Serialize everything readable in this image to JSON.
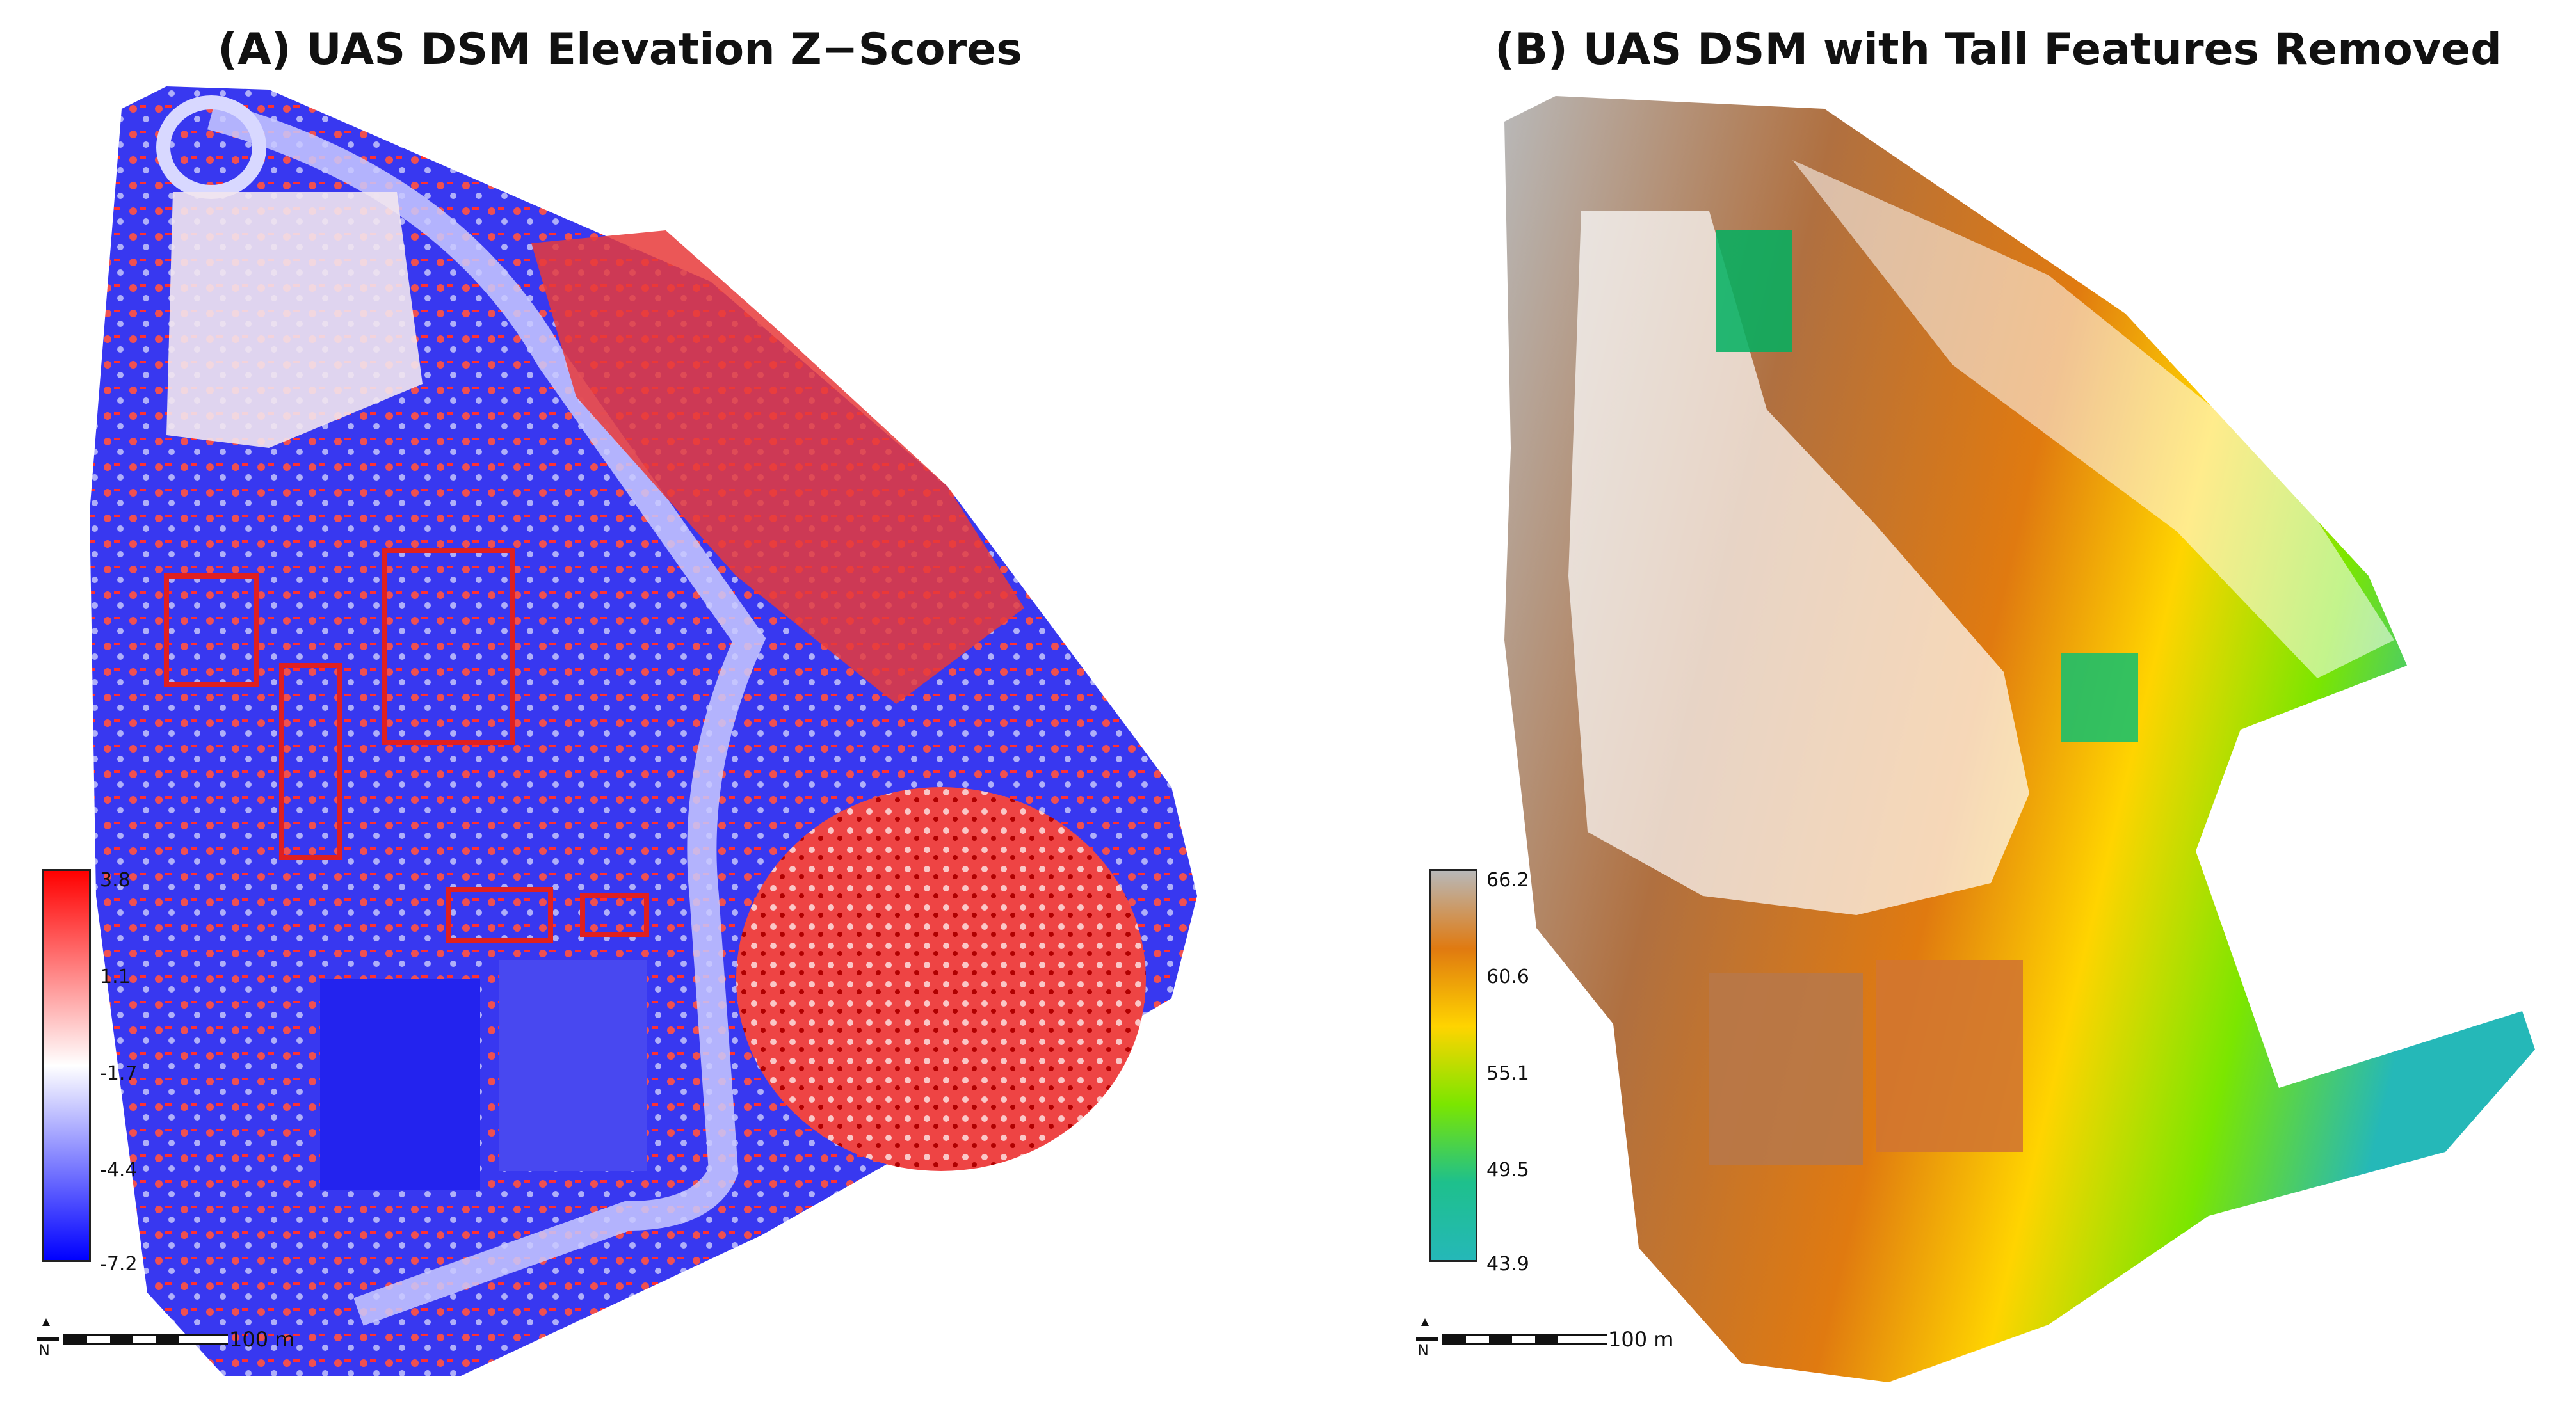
{
  "panel_a": {
    "title": "(A) UAS DSM Elevation Z−Scores",
    "legend": {
      "ticks": [
        "3.8",
        "1.1",
        "-1.7",
        "-4.4",
        "-7.2"
      ],
      "colors": [
        "#ff0000",
        "#ffffff",
        "#0000ff"
      ]
    },
    "scale_label": "100 m",
    "north_label": "N"
  },
  "panel_b": {
    "title": "(B) UAS DSM with Tall Features Removed",
    "legend": {
      "ticks": [
        "66.2",
        "60.6",
        "55.1",
        "49.5",
        "43.9"
      ],
      "colors": [
        "#b8b8b8",
        "#e07a10",
        "#ffd400",
        "#7be600",
        "#1ec08c",
        "#25b8b8"
      ]
    },
    "scale_label": "100 m",
    "north_label": "N"
  }
}
